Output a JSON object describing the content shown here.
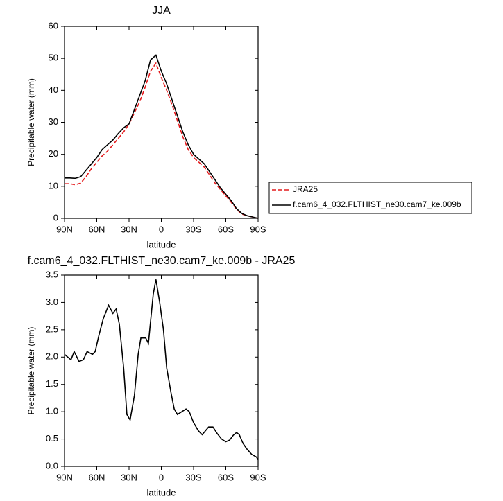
{
  "chart_data": [
    {
      "type": "line",
      "title": "JJA",
      "xlabel": "latitude",
      "ylabel": "Precipitable water (mm)",
      "x": [
        90,
        85,
        80,
        75,
        70,
        65,
        60,
        55,
        50,
        45,
        40,
        35,
        30,
        25,
        20,
        15,
        10,
        5,
        0,
        -5,
        -10,
        -15,
        -20,
        -25,
        -30,
        -35,
        -40,
        -45,
        -50,
        -55,
        -60,
        -65,
        -70,
        -75,
        -80,
        -85,
        -90
      ],
      "series": [
        {
          "name": "JRA25",
          "color": "#e41a1c",
          "line_style": "dashed",
          "values": [
            10.8,
            10.8,
            10.5,
            11,
            13,
            15.5,
            17.5,
            19.5,
            21,
            23,
            25,
            27,
            29.5,
            33,
            36.5,
            41,
            46,
            48.5,
            44,
            40,
            35.5,
            30.5,
            25.5,
            21.5,
            19,
            17.5,
            16,
            13.5,
            11,
            9,
            7,
            5,
            2.8,
            1.3,
            0.8,
            0.4,
            0
          ]
        },
        {
          "name": "f.cam6_4_032.FLTHIST_ne30.cam7_ke.009b",
          "color": "#000000",
          "line_style": "solid",
          "values": [
            12.6,
            12.6,
            12.5,
            13,
            15,
            17,
            19,
            21.5,
            23,
            24.5,
            26.5,
            28.3,
            29.5,
            34,
            38.5,
            43,
            49.5,
            51,
            46,
            42,
            37,
            32,
            27,
            23,
            20,
            18.5,
            17,
            14.5,
            12,
            9.5,
            7.5,
            5.5,
            3,
            1.5,
            0.8,
            0.4,
            0
          ]
        }
      ],
      "xlim": [
        90,
        -90
      ],
      "xticks": [
        {
          "value": 90,
          "label": "90N"
        },
        {
          "value": 60,
          "label": "60N"
        },
        {
          "value": 30,
          "label": "30N"
        },
        0,
        {
          "value": -30,
          "label": "30S"
        },
        {
          "value": -60,
          "label": "60S"
        },
        {
          "value": -90,
          "label": "90S"
        }
      ],
      "ylim": [
        0,
        60
      ],
      "yticks": [
        0,
        10,
        20,
        30,
        40,
        50,
        60
      ],
      "legend": "right"
    },
    {
      "type": "line",
      "title": "f.cam6_4_032.FLTHIST_ne30.cam7_ke.009b - JRA25",
      "xlabel": "latitude",
      "ylabel": "Precipitable water (mm)",
      "x": [
        90,
        84,
        81,
        76.5,
        72.5,
        69,
        64,
        61.5,
        58,
        54,
        49,
        45,
        42,
        39,
        35,
        32,
        29,
        25,
        21.5,
        19,
        14.5,
        12,
        7.5,
        5,
        1.5,
        -2,
        -5,
        -9,
        -12,
        -15,
        -19,
        -23,
        -26,
        -30,
        -34.5,
        -38,
        -41,
        -44,
        -48,
        -52,
        -56,
        -60,
        -63.5,
        -67,
        -70,
        -72.5,
        -76,
        -79.5,
        -84,
        -88.5,
        -90
      ],
      "color": "#000000",
      "values": [
        2.05,
        1.95,
        2.1,
        1.92,
        1.95,
        2.1,
        2.05,
        2.1,
        2.4,
        2.7,
        2.95,
        2.8,
        2.88,
        2.6,
        1.8,
        0.95,
        0.85,
        1.3,
        2.05,
        2.35,
        2.35,
        2.25,
        3.15,
        3.42,
        3.0,
        2.5,
        1.8,
        1.35,
        1.05,
        0.95,
        1.0,
        1.05,
        1.0,
        0.8,
        0.65,
        0.58,
        0.65,
        0.72,
        0.72,
        0.6,
        0.5,
        0.45,
        0.48,
        0.57,
        0.62,
        0.58,
        0.42,
        0.32,
        0.22,
        0.17,
        0.12
      ],
      "xlim": [
        90,
        -90
      ],
      "xticks": [
        {
          "value": 90,
          "label": "90N"
        },
        {
          "value": 60,
          "label": "60N"
        },
        {
          "value": 30,
          "label": "30N"
        },
        0,
        {
          "value": -30,
          "label": "30S"
        },
        {
          "value": -60,
          "label": "60S"
        },
        {
          "value": -90,
          "label": "90S"
        }
      ],
      "ylim": [
        0,
        3.5
      ],
      "yticks": [
        {
          "value": 0,
          "label": "0.0"
        },
        0.5,
        {
          "value": 1,
          "label": "1.0"
        },
        1.5,
        {
          "value": 2,
          "label": "2.0"
        },
        2.5,
        {
          "value": 3,
          "label": "3.0"
        },
        3.5
      ]
    }
  ]
}
